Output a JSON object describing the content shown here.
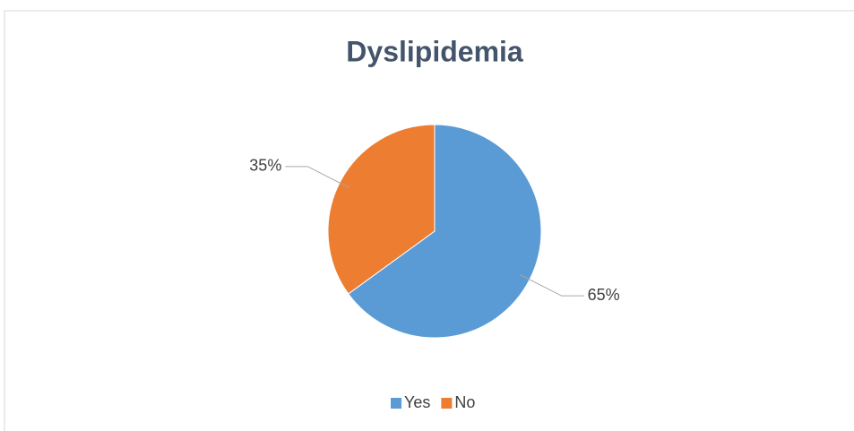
{
  "chart_data": {
    "type": "pie",
    "title": "Dyslipidemia",
    "categories": [
      "Yes",
      "No"
    ],
    "values": [
      65,
      35
    ],
    "value_labels": [
      "65%",
      "35%"
    ],
    "colors": [
      "#5b9bd5",
      "#ed7d31"
    ],
    "legend": "bottom"
  }
}
